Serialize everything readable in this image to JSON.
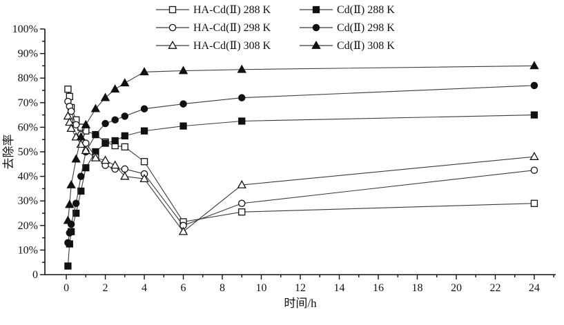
{
  "chart_data": {
    "type": "line",
    "title": "",
    "xlabel": "时间/h",
    "ylabel": "去除率",
    "x": [
      0.083,
      0.167,
      0.25,
      0.5,
      0.75,
      1,
      1.5,
      2,
      2.5,
      3,
      4,
      6,
      9,
      24
    ],
    "series": [
      {
        "name": "HA-Cd(Ⅱ) 288 K",
        "marker": "square-open",
        "values": [
          75.5,
          72.5,
          68,
          63,
          60,
          58.5,
          57,
          54,
          52.5,
          52,
          46,
          21.5,
          25.5,
          29
        ]
      },
      {
        "name": "Cd(Ⅱ) 288 K",
        "marker": "square-filled",
        "values": [
          3.5,
          12.5,
          17.5,
          25,
          34,
          43.5,
          50,
          53.5,
          54.5,
          56.5,
          58.5,
          60.5,
          62.5,
          65
        ]
      },
      {
        "name": "HA-Cd(Ⅱ) 298 K",
        "marker": "circle-open",
        "values": [
          70.5,
          68.5,
          66.5,
          61,
          57,
          53.5,
          48,
          44.5,
          43,
          43,
          41,
          20,
          29,
          42.5
        ]
      },
      {
        "name": "Cd(Ⅱ) 298 K",
        "marker": "circle-filled",
        "values": [
          13,
          17,
          20.5,
          29,
          40,
          50,
          57,
          61.5,
          63,
          64.5,
          67.5,
          69.5,
          72,
          77
        ]
      },
      {
        "name": "HA-Cd(Ⅱ) 308 K",
        "marker": "triangle-open",
        "values": [
          64.5,
          62,
          59.5,
          56,
          53,
          50.5,
          47.5,
          46.5,
          44.5,
          40,
          39,
          17.5,
          36.5,
          48
        ]
      },
      {
        "name": "Cd(Ⅱ) 308 K",
        "marker": "triangle-filled",
        "values": [
          22,
          28.5,
          36.5,
          47,
          56,
          61,
          67.5,
          72,
          75.5,
          78,
          82.5,
          83,
          83.5,
          85
        ]
      }
    ],
    "xlim": [
      -1.1,
      25.1
    ],
    "ylim": [
      0,
      100
    ],
    "x_ticks": [
      0,
      2,
      4,
      6,
      8,
      10,
      12,
      14,
      16,
      18,
      20,
      22,
      24
    ],
    "x_minor_ticks": [
      1,
      3,
      5,
      7,
      9,
      11,
      13,
      15,
      17,
      19,
      21,
      23,
      25
    ],
    "y_ticks": [
      0,
      10,
      20,
      30,
      40,
      50,
      60,
      70,
      80,
      90,
      100
    ],
    "y_tick_labels": [
      "0",
      "10%",
      "20%",
      "30%",
      "40%",
      "50%",
      "60%",
      "70%",
      "80%",
      "90%",
      "100%"
    ],
    "y_minor_ticks": [
      5,
      15,
      25,
      35,
      45,
      55,
      65,
      75,
      85,
      95
    ],
    "grid": false,
    "legend_position": "top-center",
    "colors": {
      "line": "#3a3a3a",
      "marker_stroke": "#111111",
      "axis": "#111111",
      "text": "#111111",
      "background": "#ffffff"
    }
  }
}
